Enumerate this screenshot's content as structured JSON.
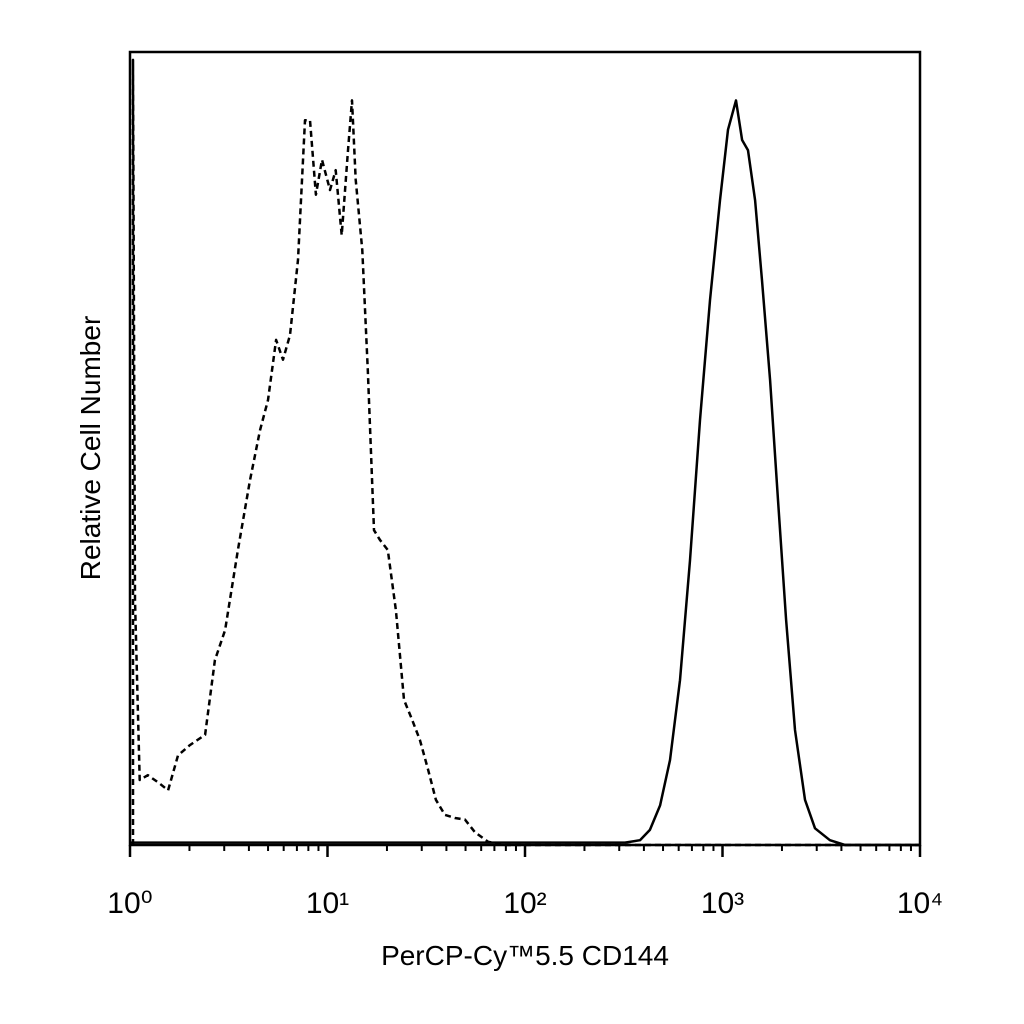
{
  "chart_data": {
    "type": "line",
    "xlabel": "PerCP-Cy™5.5 CD144",
    "ylabel": "Relative Cell Number",
    "xscale": "log",
    "xlim": [
      1,
      10000
    ],
    "ylim": [
      0,
      100
    ],
    "xticks": [
      {
        "value": 1,
        "label": "10⁰"
      },
      {
        "value": 10,
        "label": "10¹"
      },
      {
        "value": 100,
        "label": "10²"
      },
      {
        "value": 1000,
        "label": "10³"
      },
      {
        "value": 10000,
        "label": "10⁴"
      }
    ],
    "xminorticks": [
      2,
      3,
      4,
      5,
      6,
      7,
      8,
      9,
      20,
      30,
      40,
      50,
      60,
      70,
      80,
      90,
      200,
      300,
      400,
      500,
      600,
      700,
      800,
      900,
      2000,
      3000,
      4000,
      5000,
      6000,
      7000,
      8000,
      9000
    ],
    "series": [
      {
        "color": "#000000",
        "style": "dashed",
        "x": [
          1.036,
          1.036,
          1.06,
          1.12,
          1.23,
          1.39,
          1.56,
          1.75,
          2.01,
          2.4,
          2.69,
          3.03,
          3.52,
          4.05,
          4.55,
          5.0,
          5.49,
          5.95,
          6.46,
          7.09,
          7.69,
          8.15,
          8.74,
          9.38,
          10.3,
          11.0,
          11.8,
          12.7,
          13.3,
          13.9,
          15.0,
          16.0,
          17.2,
          18.4,
          20.2,
          22.2,
          24.4,
          26.8,
          29.4,
          32.3,
          35.4,
          39.3,
          44.2,
          49.7,
          55.8,
          65.0,
          79.2,
          10000
        ],
        "values": [
          0,
          99.0,
          30.9,
          8.2,
          8.8,
          7.9,
          6.9,
          11.3,
          12.6,
          13.9,
          23.3,
          27.1,
          37.2,
          46.0,
          52.3,
          56.1,
          63.7,
          61.2,
          64.3,
          73.8,
          91.4,
          91.4,
          82.0,
          86.4,
          82.6,
          85.1,
          76.9,
          87.6,
          93.9,
          83.9,
          75.0,
          59.9,
          39.7,
          38.5,
          37.2,
          29.6,
          18.3,
          15.8,
          13.2,
          9.5,
          5.7,
          3.8,
          3.4,
          3.2,
          1.6,
          0.4,
          0,
          0
        ]
      },
      {
        "color": "#000000",
        "style": "solid",
        "x": [
          1,
          321,
          382,
          429,
          483,
          542,
          609,
          685,
          769,
          864,
          971,
          1066,
          1170,
          1256,
          1346,
          1462,
          1585,
          1741,
          1911,
          2099,
          2329,
          2618,
          2940,
          3499,
          4169,
          10000
        ],
        "values": [
          0.3,
          0.3,
          0.6,
          1.9,
          5.0,
          10.7,
          20.8,
          35.9,
          53.6,
          68.7,
          81.3,
          90.2,
          93.9,
          88.9,
          87.6,
          81.3,
          71.2,
          58.6,
          43.5,
          28.4,
          14.5,
          5.7,
          2.1,
          0.6,
          0,
          0
        ]
      }
    ]
  }
}
